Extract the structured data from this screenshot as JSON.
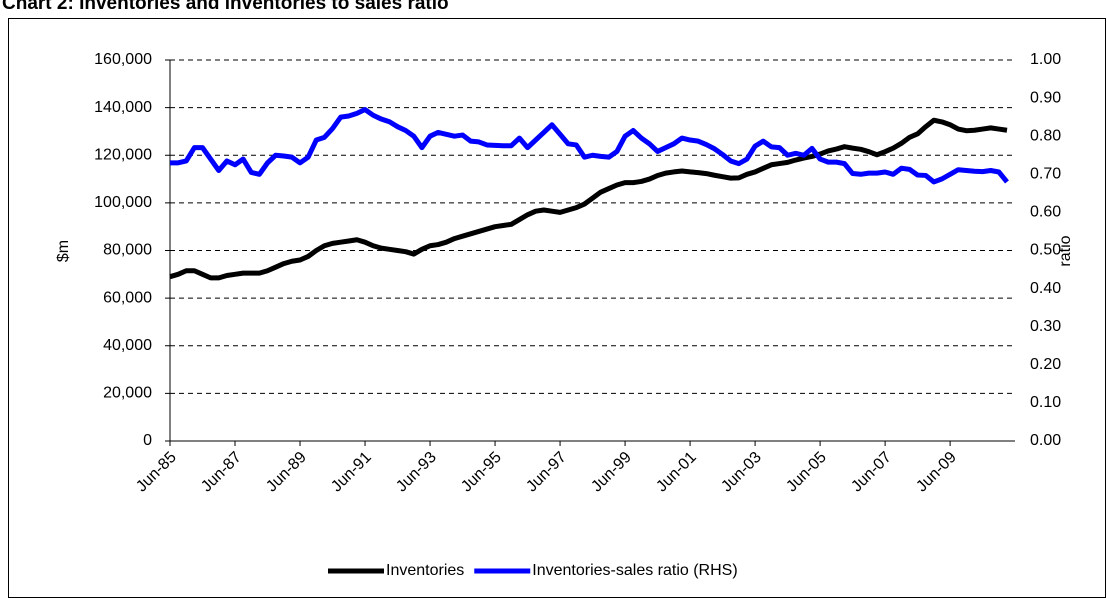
{
  "chart_data": {
    "type": "line",
    "title": "Chart 2: Inventories and inventories to sales ratio",
    "y_label": "$m",
    "y2_label": "ratio",
    "categories": [
      "Jun-85",
      null,
      null,
      null,
      null,
      null,
      null,
      null,
      "Jun-87",
      null,
      null,
      null,
      null,
      null,
      null,
      null,
      "Jun-89",
      null,
      null,
      null,
      null,
      null,
      null,
      null,
      "Jun-91",
      null,
      null,
      null,
      null,
      null,
      null,
      null,
      "Jun-93",
      null,
      null,
      null,
      null,
      null,
      null,
      null,
      "Jun-95",
      null,
      null,
      null,
      null,
      null,
      null,
      null,
      "Jun-97",
      null,
      null,
      null,
      null,
      null,
      null,
      null,
      "Jun-99",
      null,
      null,
      null,
      null,
      null,
      null,
      null,
      "Jun-01",
      null,
      null,
      null,
      null,
      null,
      null,
      null,
      "Jun-03",
      null,
      null,
      null,
      null,
      null,
      null,
      null,
      "Jun-05",
      null,
      null,
      null,
      null,
      null,
      null,
      null,
      "Jun-07",
      null,
      null,
      null,
      null,
      null,
      null,
      null,
      "Jun-09",
      null,
      null,
      null,
      null,
      null,
      null,
      null
    ],
    "series": [
      {
        "name": "Inventories",
        "color": "#000000",
        "values": [
          69000,
          70000,
          71500,
          71500,
          70000,
          68500,
          68500,
          69500,
          70000,
          70500,
          70500,
          70500,
          71500,
          73000,
          74500,
          75500,
          76000,
          77500,
          80000,
          82000,
          83000,
          83500,
          84000,
          84500,
          83500,
          82000,
          81000,
          80500,
          80000,
          79500,
          78500,
          80500,
          82000,
          82500,
          83500,
          85000,
          86000,
          87000,
          88000,
          89000,
          90000,
          90500,
          91000,
          93000,
          95000,
          96500,
          97000,
          96500,
          96000,
          97000,
          98000,
          99500,
          102000,
          104500,
          106000,
          107500,
          108500,
          108500,
          109000,
          110000,
          111500,
          112500,
          113000,
          113400,
          113000,
          112700,
          112300,
          111600,
          111000,
          110400,
          110500,
          112000,
          113000,
          114500,
          116000,
          116500,
          117000,
          118000,
          118800,
          119500,
          120500,
          121800,
          122600,
          123600,
          123000,
          122500,
          121500,
          120200,
          121500,
          123000,
          125000,
          127500,
          129000,
          132000,
          134700,
          134000,
          132800,
          131000,
          130300,
          130500,
          131000,
          131500,
          131000,
          130500
        ]
      },
      {
        "name": "Inventories-sales ratio (RHS)",
        "color": "#0000ff",
        "axis": "y2",
        "values": [
          0.73,
          0.73,
          0.735,
          0.77,
          0.77,
          0.74,
          0.71,
          0.735,
          0.725,
          0.74,
          0.705,
          0.7,
          0.73,
          0.75,
          0.748,
          0.745,
          0.73,
          0.745,
          0.79,
          0.797,
          0.82,
          0.85,
          0.853,
          0.86,
          0.87,
          0.855,
          0.845,
          0.838,
          0.825,
          0.815,
          0.8,
          0.77,
          0.8,
          0.81,
          0.805,
          0.8,
          0.803,
          0.787,
          0.785,
          0.777,
          0.776,
          0.775,
          0.775,
          0.795,
          0.77,
          0.79,
          0.81,
          0.83,
          0.805,
          0.78,
          0.777,
          0.745,
          0.75,
          0.747,
          0.745,
          0.76,
          0.8,
          0.815,
          0.795,
          0.78,
          0.76,
          0.77,
          0.78,
          0.795,
          0.79,
          0.787,
          0.778,
          0.767,
          0.752,
          0.735,
          0.728,
          0.74,
          0.774,
          0.787,
          0.772,
          0.77,
          0.75,
          0.755,
          0.75,
          0.768,
          0.74,
          0.732,
          0.732,
          0.728,
          0.702,
          0.7,
          0.703,
          0.703,
          0.706,
          0.7,
          0.716,
          0.713,
          0.698,
          0.697,
          0.68,
          0.688,
          0.7,
          0.712,
          0.71,
          0.708,
          0.707,
          0.71,
          0.706,
          0.68
        ]
      }
    ],
    "ylim": [
      0,
      160000
    ],
    "yticks": [
      0,
      {
        "value": 20000,
        "label": "20,000"
      },
      {
        "value": 40000,
        "label": "40,000"
      },
      {
        "value": 60000,
        "label": "60,000"
      },
      {
        "value": 80000,
        "label": "80,000"
      },
      {
        "value": 100000,
        "label": "100,000"
      },
      {
        "value": 120000,
        "label": "120,000"
      },
      {
        "value": 140000,
        "label": "140,000"
      },
      {
        "value": 160000,
        "label": "160,000"
      }
    ],
    "y2lim": [
      0,
      1
    ],
    "y2ticks": [
      {
        "value": 0,
        "label": "0.00"
      },
      {
        "value": 0.1,
        "label": "0.10"
      },
      {
        "value": 0.2,
        "label": "0.20"
      },
      {
        "value": 0.3,
        "label": "0.30"
      },
      {
        "value": 0.4,
        "label": "0.40"
      },
      {
        "value": 0.5,
        "label": "0.50"
      },
      {
        "value": 0.6,
        "label": "0.60"
      },
      {
        "value": 0.7,
        "label": "0.70"
      },
      {
        "value": 0.8,
        "label": "0.80"
      },
      {
        "value": 0.9,
        "label": "0.90"
      },
      {
        "value": 1,
        "label": "1.00"
      }
    ],
    "grid": true,
    "legend": "bottom"
  }
}
